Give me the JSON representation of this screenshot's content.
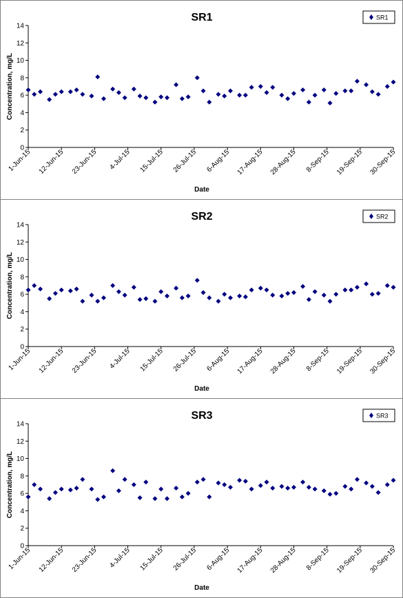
{
  "chart_data": [
    {
      "type": "scatter",
      "title": "SR1",
      "xlabel": "Date",
      "ylabel": "Concentration, mg/L",
      "ylim": [
        0,
        14
      ],
      "yticks": [
        0,
        2,
        4,
        6,
        8,
        10,
        12,
        14
      ],
      "xlim": [
        "2015-06-01",
        "2015-09-30"
      ],
      "xticks": [
        "1-Jun-15",
        "12-Jun-15",
        "23-Jun-15",
        "4-Jul-15",
        "15-Jul-15",
        "26-Jul-15",
        "6-Aug-15",
        "17-Aug-15",
        "28-Aug-15",
        "8-Sep-15",
        "19-Sep-15",
        "30-Sep-15"
      ],
      "legend_position": "top-right",
      "grid": false,
      "marker_color": "#000080",
      "series": [
        {
          "name": "SR1",
          "x": [
            "2015-06-01",
            "2015-06-03",
            "2015-06-05",
            "2015-06-08",
            "2015-06-10",
            "2015-06-12",
            "2015-06-15",
            "2015-06-17",
            "2015-06-19",
            "2015-06-22",
            "2015-06-24",
            "2015-06-26",
            "2015-06-29",
            "2015-07-01",
            "2015-07-03",
            "2015-07-06",
            "2015-07-08",
            "2015-07-10",
            "2015-07-13",
            "2015-07-15",
            "2015-07-17",
            "2015-07-20",
            "2015-07-22",
            "2015-07-24",
            "2015-07-27",
            "2015-07-29",
            "2015-07-31",
            "2015-08-03",
            "2015-08-05",
            "2015-08-07",
            "2015-08-10",
            "2015-08-12",
            "2015-08-14",
            "2015-08-17",
            "2015-08-19",
            "2015-08-21",
            "2015-08-24",
            "2015-08-26",
            "2015-08-28",
            "2015-08-31",
            "2015-09-02",
            "2015-09-04",
            "2015-09-07",
            "2015-09-09",
            "2015-09-11",
            "2015-09-14",
            "2015-09-16",
            "2015-09-18",
            "2015-09-21",
            "2015-09-23",
            "2015-09-25",
            "2015-09-28",
            "2015-09-30"
          ],
          "y": [
            6.6,
            6.1,
            6.4,
            5.5,
            6.1,
            6.4,
            6.4,
            6.6,
            6.1,
            5.9,
            8.1,
            5.6,
            6.7,
            6.3,
            5.7,
            6.7,
            5.9,
            5.7,
            5.2,
            5.8,
            5.7,
            7.2,
            5.6,
            5.8,
            8.0,
            6.5,
            5.2,
            6.1,
            5.9,
            6.5,
            6.0,
            6.0,
            6.9,
            7.0,
            6.3,
            6.9,
            6.0,
            5.6,
            6.2,
            6.6,
            5.2,
            6.0,
            6.6,
            5.1,
            6.2,
            6.5,
            6.5,
            7.6,
            7.2,
            6.4,
            6.1,
            7.0,
            7.5
          ]
        }
      ]
    },
    {
      "type": "scatter",
      "title": "SR2",
      "xlabel": "Date",
      "ylabel": "Concentration, mg/L",
      "ylim": [
        0,
        14
      ],
      "yticks": [
        0,
        2,
        4,
        6,
        8,
        10,
        12,
        14
      ],
      "xlim": [
        "2015-06-01",
        "2015-09-30"
      ],
      "xticks": [
        "1-Jun-15",
        "12-Jun-15",
        "23-Jun-15",
        "4-Jul-15",
        "15-Jul-15",
        "26-Jul-15",
        "6-Aug-15",
        "17-Aug-15",
        "28-Aug-15",
        "8-Sep-15",
        "19-Sep-15",
        "30-Sep-15"
      ],
      "legend_position": "top-right",
      "grid": false,
      "marker_color": "#000080",
      "series": [
        {
          "name": "SR2",
          "x": [
            "2015-06-01",
            "2015-06-03",
            "2015-06-05",
            "2015-06-08",
            "2015-06-10",
            "2015-06-12",
            "2015-06-15",
            "2015-06-17",
            "2015-06-19",
            "2015-06-22",
            "2015-06-24",
            "2015-06-26",
            "2015-06-29",
            "2015-07-01",
            "2015-07-03",
            "2015-07-06",
            "2015-07-08",
            "2015-07-10",
            "2015-07-13",
            "2015-07-15",
            "2015-07-17",
            "2015-07-20",
            "2015-07-22",
            "2015-07-24",
            "2015-07-27",
            "2015-07-29",
            "2015-07-31",
            "2015-08-03",
            "2015-08-05",
            "2015-08-07",
            "2015-08-10",
            "2015-08-12",
            "2015-08-14",
            "2015-08-17",
            "2015-08-19",
            "2015-08-21",
            "2015-08-24",
            "2015-08-26",
            "2015-08-28",
            "2015-08-31",
            "2015-09-02",
            "2015-09-04",
            "2015-09-07",
            "2015-09-09",
            "2015-09-11",
            "2015-09-14",
            "2015-09-16",
            "2015-09-18",
            "2015-09-21",
            "2015-09-23",
            "2015-09-25",
            "2015-09-28",
            "2015-09-30"
          ],
          "y": [
            6.5,
            7.0,
            6.6,
            5.5,
            6.1,
            6.5,
            6.4,
            6.6,
            5.2,
            5.9,
            5.2,
            5.6,
            7.0,
            6.3,
            5.9,
            6.8,
            5.4,
            5.5,
            5.2,
            6.3,
            5.8,
            6.7,
            5.6,
            5.8,
            7.6,
            6.2,
            5.6,
            5.2,
            6.0,
            5.6,
            5.8,
            5.7,
            6.5,
            6.7,
            6.5,
            5.9,
            5.8,
            6.1,
            6.2,
            6.9,
            5.4,
            6.3,
            5.9,
            5.2,
            6.0,
            6.5,
            6.5,
            6.8,
            7.2,
            6.0,
            6.1,
            7.0,
            6.8
          ]
        }
      ]
    },
    {
      "type": "scatter",
      "title": "SR3",
      "xlabel": "Date",
      "ylabel": "Concentration, mg/L",
      "ylim": [
        0,
        14
      ],
      "yticks": [
        0,
        2,
        4,
        6,
        8,
        10,
        12,
        14
      ],
      "xlim": [
        "2015-06-01",
        "2015-09-30"
      ],
      "xticks": [
        "1-Jun-15",
        "12-Jun-15",
        "23-Jun-15",
        "4-Jul-15",
        "15-Jul-15",
        "26-Jul-15",
        "6-Aug-15",
        "17-Aug-15",
        "28-Aug-15",
        "8-Sep-15",
        "19-Sep-15",
        "30-Sep-15"
      ],
      "legend_position": "top-right",
      "grid": false,
      "marker_color": "#000080",
      "series": [
        {
          "name": "SR3",
          "x": [
            "2015-06-01",
            "2015-06-03",
            "2015-06-05",
            "2015-06-08",
            "2015-06-10",
            "2015-06-12",
            "2015-06-15",
            "2015-06-17",
            "2015-06-19",
            "2015-06-22",
            "2015-06-24",
            "2015-06-26",
            "2015-06-29",
            "2015-07-01",
            "2015-07-03",
            "2015-07-06",
            "2015-07-08",
            "2015-07-10",
            "2015-07-13",
            "2015-07-15",
            "2015-07-17",
            "2015-07-20",
            "2015-07-22",
            "2015-07-24",
            "2015-07-27",
            "2015-07-29",
            "2015-07-31",
            "2015-08-03",
            "2015-08-05",
            "2015-08-07",
            "2015-08-10",
            "2015-08-12",
            "2015-08-14",
            "2015-08-17",
            "2015-08-19",
            "2015-08-21",
            "2015-08-24",
            "2015-08-26",
            "2015-08-28",
            "2015-08-31",
            "2015-09-02",
            "2015-09-04",
            "2015-09-07",
            "2015-09-09",
            "2015-09-11",
            "2015-09-14",
            "2015-09-16",
            "2015-09-18",
            "2015-09-21",
            "2015-09-23",
            "2015-09-25",
            "2015-09-28",
            "2015-09-30"
          ],
          "y": [
            5.6,
            7.0,
            6.5,
            5.4,
            6.1,
            6.5,
            6.4,
            6.6,
            7.6,
            6.5,
            5.3,
            5.6,
            8.6,
            6.3,
            7.6,
            7.0,
            5.5,
            7.3,
            5.4,
            6.5,
            5.4,
            6.6,
            5.6,
            6.0,
            7.3,
            7.6,
            5.6,
            7.2,
            7.0,
            6.7,
            7.5,
            7.4,
            6.5,
            6.9,
            7.3,
            6.6,
            6.8,
            6.6,
            6.7,
            7.3,
            6.7,
            6.5,
            6.3,
            5.9,
            6.0,
            6.8,
            6.5,
            7.6,
            7.2,
            6.8,
            6.1,
            7.0,
            7.5
          ]
        }
      ]
    }
  ]
}
